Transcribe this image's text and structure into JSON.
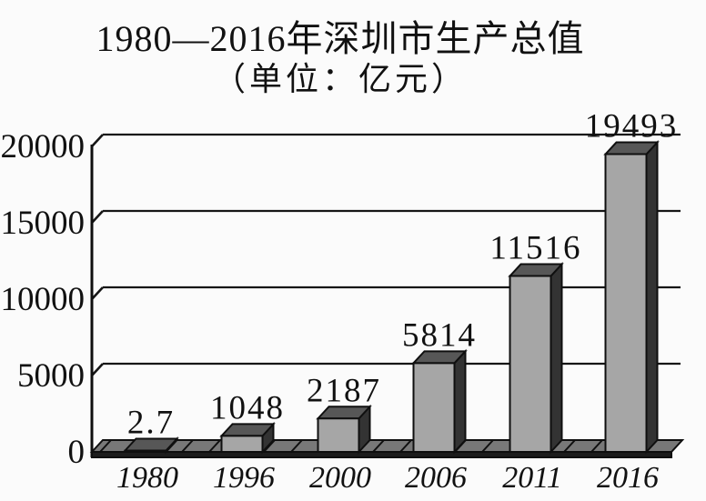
{
  "chart_data": {
    "type": "bar",
    "style": "3d-prism-bars",
    "title": "1980—2016年深圳市生产总值",
    "subtitle": "（单位：亿元）",
    "unit": "亿元",
    "categories": [
      "1980",
      "1996",
      "2000",
      "2006",
      "2011",
      "2016"
    ],
    "values": [
      2.7,
      1048,
      2187,
      5814,
      11516,
      19493
    ],
    "value_labels": [
      "2.7",
      "1048",
      "2187",
      "5814",
      "11516",
      "19493"
    ],
    "xlabel": "",
    "ylabel": "",
    "ylim": [
      0,
      20000
    ],
    "y_ticks": [
      0,
      5000,
      10000,
      15000,
      20000
    ],
    "y_tick_labels": [
      "0",
      "5000",
      "10000",
      "15000",
      "20000"
    ],
    "grid": true,
    "legend": false,
    "colors": {
      "background": "#fbfbfb",
      "bar_front": "#a6a6a6",
      "bar_top": "#575757",
      "bar_side": "#333333",
      "floor_top": "#787878",
      "floor_front": "#1c1c1c",
      "outline": "#0f0f0f",
      "grid_line": "#161616",
      "text": "#111111"
    }
  }
}
